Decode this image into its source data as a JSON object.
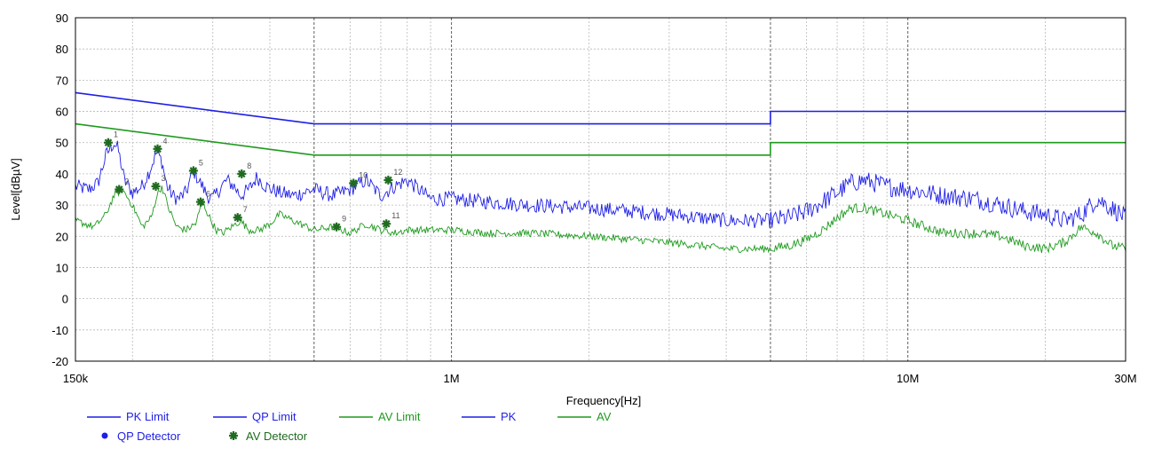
{
  "chart_data": {
    "type": "line",
    "xlabel": "Frequency[Hz]",
    "ylabel": "Level[dBµV]",
    "xscale": "log",
    "xlim": [
      150000,
      30000000
    ],
    "ylim": [
      -20,
      90
    ],
    "ytick_step": 10,
    "xtick_labels": [
      {
        "value": 150000,
        "label": "150k"
      },
      {
        "value": 1000000,
        "label": "1M"
      },
      {
        "value": 10000000,
        "label": "10M"
      },
      {
        "value": 30000000,
        "label": "30M"
      }
    ],
    "grid": true,
    "legend_position": "bottom-left",
    "colors": {
      "blue": "#1f1fe6",
      "green": "#1e9a1e",
      "grid": "#b8b8b8",
      "marker": "#1f6b1f"
    },
    "legend": [
      {
        "label": "PK Limit",
        "symbol": "line",
        "color": "#1f1fe6"
      },
      {
        "label": "QP Limit",
        "symbol": "line",
        "color": "#1f1fe6"
      },
      {
        "label": "AV Limit",
        "symbol": "line",
        "color": "#1e9a1e"
      },
      {
        "label": "PK",
        "symbol": "line",
        "color": "#1f1fe6"
      },
      {
        "label": "AV",
        "symbol": "line",
        "color": "#1e9a1e"
      },
      {
        "label": "QP Detector",
        "symbol": "dot",
        "color": "#1f1fe6"
      },
      {
        "label": "AV Detector",
        "symbol": "star",
        "color": "#1f6b1f"
      }
    ],
    "series": [
      {
        "name": "QP Limit",
        "color": "#1f1fe6",
        "width": 1.6,
        "x": [
          150000,
          500000,
          500000,
          5000000,
          5000000,
          30000000
        ],
        "y": [
          66,
          56,
          56,
          56,
          60,
          60
        ]
      },
      {
        "name": "AV Limit",
        "color": "#1e9a1e",
        "width": 1.6,
        "x": [
          150000,
          500000,
          500000,
          5000000,
          5000000,
          30000000
        ],
        "y": [
          56,
          46,
          46,
          46,
          50,
          50
        ]
      },
      {
        "name": "PK",
        "color": "#1f1fe6",
        "width": 0.9,
        "noise": 2.4,
        "x": [
          150000,
          160000,
          168000,
          175000,
          182000,
          186000,
          192000,
          200000,
          210000,
          218000,
          226000,
          232000,
          238000,
          245000,
          252000,
          262000,
          272000,
          282000,
          292000,
          300000,
          310000,
          322000,
          334000,
          345000,
          360000,
          375000,
          392000,
          405000,
          420000,
          450000,
          500000,
          550000,
          600000,
          650000,
          700000,
          750000,
          800000,
          900000,
          1000000,
          1200000,
          1500000,
          2000000,
          2500000,
          3000000,
          3500000,
          4000000,
          4500000,
          5000000,
          5500000,
          6000000,
          6500000,
          7000000,
          7500000,
          8000000,
          8500000,
          9000000,
          10000000,
          12000000,
          14000000,
          16000000,
          18000000,
          20000000,
          22000000,
          24000000,
          26000000,
          28000000,
          30000000
        ],
        "y": [
          36,
          35,
          37,
          46,
          50,
          48,
          38,
          34,
          36,
          41,
          47,
          44,
          36,
          33,
          32,
          34,
          41,
          37,
          33,
          32,
          35,
          38,
          36,
          33,
          35,
          39,
          36,
          35,
          34,
          33,
          35,
          33,
          35,
          38,
          33,
          36,
          38,
          32,
          32,
          31,
          30,
          29,
          28,
          27,
          26,
          25,
          25,
          25,
          26,
          28,
          31,
          34,
          37,
          38,
          37,
          36,
          35,
          33,
          32,
          30,
          28,
          27,
          25,
          27,
          32,
          29,
          26
        ]
      },
      {
        "name": "AV",
        "color": "#1e9a1e",
        "width": 0.9,
        "noise": 1.2,
        "x": [
          150000,
          165000,
          175000,
          182000,
          190000,
          200000,
          210000,
          220000,
          226000,
          232000,
          240000,
          250000,
          262000,
          275000,
          285000,
          295000,
          305000,
          315000,
          330000,
          345000,
          360000,
          380000,
          400000,
          420000,
          450000,
          500000,
          550000,
          600000,
          650000,
          700000,
          750000,
          800000,
          900000,
          1000000,
          1200000,
          1500000,
          2000000,
          2500000,
          3000000,
          3500000,
          4000000,
          4500000,
          5000000,
          5500000,
          6000000,
          6500000,
          7000000,
          7500000,
          8000000,
          8500000,
          9000000,
          10000000,
          12000000,
          14000000,
          16000000,
          18000000,
          20000000,
          22000000,
          24000000,
          26000000,
          28000000,
          30000000
        ],
        "y": [
          25,
          23,
          27,
          33,
          35,
          30,
          23,
          26,
          33,
          36,
          29,
          23,
          22,
          24,
          31,
          26,
          22,
          21,
          23,
          25,
          22,
          22,
          24,
          27,
          25,
          22,
          23,
          21,
          24,
          22,
          21,
          22,
          22,
          22,
          21,
          21,
          20,
          19,
          18,
          17,
          16,
          16,
          16,
          17,
          19,
          22,
          26,
          29,
          29,
          28,
          27,
          25,
          21,
          21,
          20,
          17,
          16,
          18,
          23,
          21,
          17,
          16
        ]
      }
    ],
    "markers": [
      {
        "label": "1",
        "x": 177000,
        "y": 50,
        "type": "AV Detector"
      },
      {
        "label": "2",
        "x": 187000,
        "y": 35,
        "type": "AV Detector"
      },
      {
        "label": "3",
        "x": 225000,
        "y": 36,
        "type": "AV Detector"
      },
      {
        "label": "4",
        "x": 227000,
        "y": 48,
        "type": "AV Detector"
      },
      {
        "label": "5",
        "x": 272000,
        "y": 41,
        "type": "AV Detector"
      },
      {
        "label": "6",
        "x": 282000,
        "y": 31,
        "type": "AV Detector"
      },
      {
        "label": "7",
        "x": 340000,
        "y": 26,
        "type": "AV Detector"
      },
      {
        "label": "8",
        "x": 347000,
        "y": 40,
        "type": "AV Detector"
      },
      {
        "label": "9",
        "x": 560000,
        "y": 23,
        "type": "AV Detector"
      },
      {
        "label": "10",
        "x": 610000,
        "y": 37,
        "type": "AV Detector"
      },
      {
        "label": "11",
        "x": 720000,
        "y": 24,
        "type": "AV Detector"
      },
      {
        "label": "12",
        "x": 727000,
        "y": 38,
        "type": "AV Detector"
      }
    ]
  }
}
